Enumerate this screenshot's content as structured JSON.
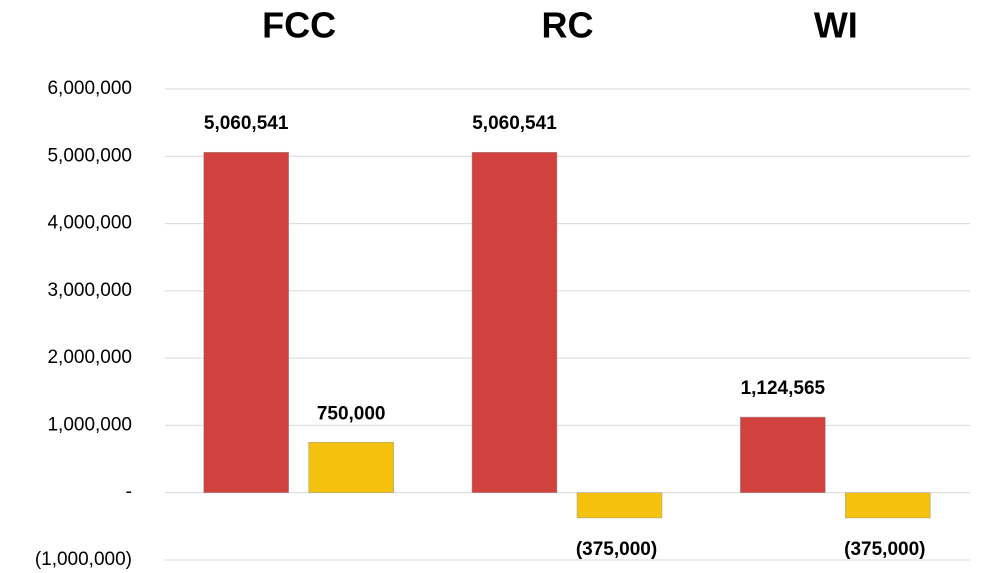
{
  "chart_data": {
    "type": "bar",
    "categories": [
      "FCC",
      "RC",
      "WI"
    ],
    "series": [
      {
        "color": "#d1423f",
        "values": [
          5060541,
          5060541,
          1124565
        ],
        "value_labels": [
          "5,060,541",
          "5,060,541",
          "1,124,565"
        ]
      },
      {
        "color": "#f4c20d",
        "values": [
          750000,
          -375000,
          -375000
        ],
        "value_labels": [
          "750,000",
          "(375,000)",
          "(375,000)"
        ]
      }
    ],
    "ylim": [
      -1000000,
      6000000
    ],
    "yticks": [
      {
        "value": -1000000,
        "label": "(1,000,000)"
      },
      {
        "value": 0,
        "label": "-"
      },
      {
        "value": 1000000,
        "label": "1,000,000"
      },
      {
        "value": 2000000,
        "label": "2,000,000"
      },
      {
        "value": 3000000,
        "label": "3,000,000"
      },
      {
        "value": 4000000,
        "label": "4,000,000"
      },
      {
        "value": 5000000,
        "label": "5,000,000"
      },
      {
        "value": 6000000,
        "label": "6,000,000"
      }
    ],
    "grid": true
  }
}
